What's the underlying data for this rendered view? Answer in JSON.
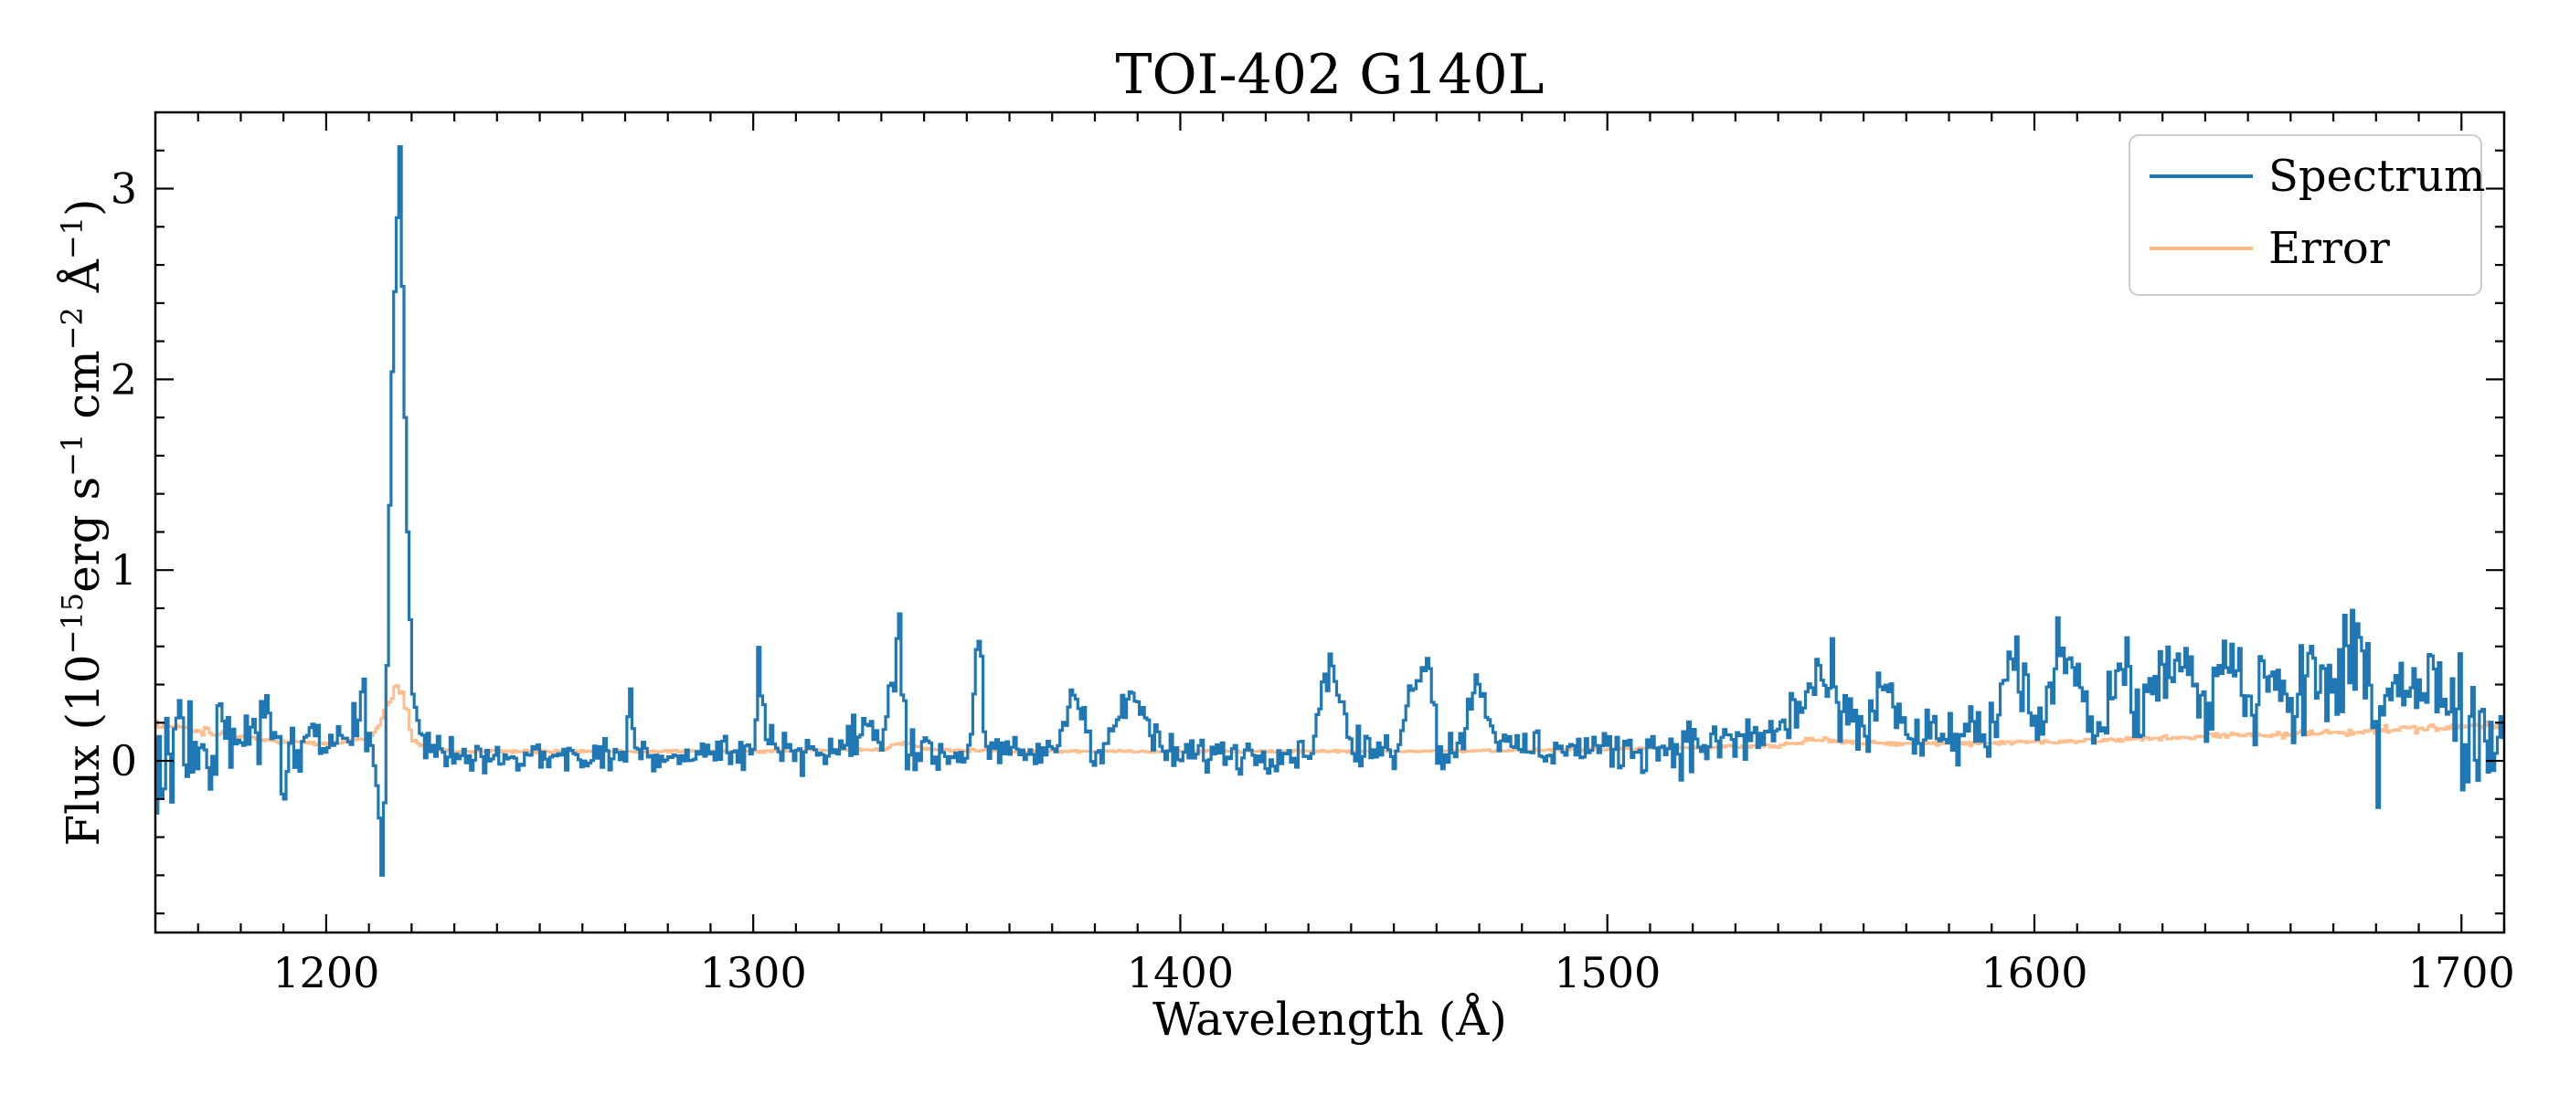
{
  "chart_data": {
    "type": "line",
    "title": "TOI-402 G140L",
    "xlabel": "Wavelength (Å)",
    "ylabel": {
      "prefix": "Flux (10",
      "exp1": "−15",
      "mid1": "erg s",
      "exp2": "−1",
      "mid2": " cm",
      "exp3": "−2",
      "mid3": " Å",
      "exp4": "−1",
      "suffix": ")"
    },
    "xlim": [
      1160,
      1710
    ],
    "ylim": [
      -0.9,
      3.4
    ],
    "x_ticks": [
      1200,
      1300,
      1400,
      1500,
      1600,
      1700
    ],
    "y_ticks": [
      0,
      1,
      2,
      3
    ],
    "legend": {
      "position": "top-right",
      "entries": [
        "Spectrum",
        "Error"
      ]
    },
    "colors": {
      "spectrum": "#1f77b4",
      "error": "#ffbb88"
    },
    "bin_width": 0.6,
    "series": [
      {
        "name": "Spectrum",
        "style": "step",
        "x": [
          1160,
          1165,
          1170,
          1175,
          1180,
          1185,
          1190,
          1195,
          1200,
          1205,
          1208,
          1210,
          1212,
          1213,
          1214,
          1215,
          1216,
          1217,
          1218,
          1219,
          1220,
          1222,
          1225,
          1230,
          1240,
          1250,
          1260,
          1270,
          1271,
          1272,
          1280,
          1290,
          1300,
          1301,
          1303,
          1310,
          1320,
          1326,
          1330,
          1334,
          1335,
          1336,
          1340,
          1350,
          1353,
          1354,
          1360,
          1370,
          1375,
          1380,
          1389,
          1395,
          1400,
          1410,
          1420,
          1430,
          1435,
          1440,
          1445,
          1450,
          1455,
          1458,
          1460,
          1465,
          1469,
          1475,
          1480,
          1490,
          1500,
          1510,
          1520,
          1530,
          1540,
          1545,
          1550,
          1555,
          1560,
          1565,
          1570,
          1580,
          1590,
          1595,
          1600,
          1607,
          1615,
          1620,
          1625,
          1630,
          1635,
          1640,
          1645,
          1650,
          1655,
          1660,
          1665,
          1670,
          1675,
          1680,
          1685,
          1690,
          1695,
          1700,
          1705,
          1710
        ],
        "y": [
          0.05,
          0.2,
          -0.1,
          0.12,
          0.05,
          0.3,
          -0.05,
          0.05,
          0.1,
          0.25,
          0.3,
          0.15,
          -0.2,
          -0.7,
          0.5,
          1.9,
          2.6,
          3.22,
          2.0,
          1.0,
          0.35,
          0.12,
          0.05,
          0.03,
          0.02,
          0.03,
          0.02,
          0.04,
          0.38,
          0.05,
          0.03,
          0.05,
          0.04,
          0.53,
          0.1,
          0.06,
          0.04,
          0.2,
          0.06,
          0.75,
          0.3,
          0.1,
          0.04,
          0.03,
          0.76,
          0.05,
          0.03,
          0.04,
          0.37,
          0.03,
          0.35,
          0.05,
          0.03,
          0.04,
          0.04,
          0.05,
          0.55,
          0.05,
          0.05,
          0.06,
          0.45,
          0.58,
          0.05,
          0.06,
          0.45,
          0.06,
          0.07,
          0.06,
          0.06,
          0.07,
          0.08,
          0.1,
          0.15,
          0.3,
          0.45,
          0.2,
          0.12,
          0.45,
          0.1,
          0.12,
          0.15,
          0.52,
          0.15,
          0.63,
          0.15,
          0.52,
          0.2,
          0.55,
          0.45,
          0.2,
          0.58,
          0.25,
          0.5,
          0.2,
          0.55,
          0.3,
          0.6,
          0.2,
          0.55,
          0.3,
          0.45,
          0.2,
          0.15,
          0.1
        ]
      },
      {
        "name": "Error",
        "style": "step",
        "x": [
          1160,
          1170,
          1180,
          1190,
          1200,
          1205,
          1210,
          1212,
          1214,
          1216,
          1217,
          1218,
          1219,
          1220,
          1222,
          1225,
          1230,
          1250,
          1270,
          1290,
          1300,
          1330,
          1335,
          1340,
          1360,
          1400,
          1450,
          1500,
          1520,
          1540,
          1550,
          1560,
          1580,
          1600,
          1620,
          1640,
          1660,
          1680,
          1700,
          1710
        ],
        "y": [
          0.19,
          0.16,
          0.13,
          0.1,
          0.09,
          0.1,
          0.12,
          0.18,
          0.28,
          0.38,
          0.4,
          0.33,
          0.22,
          0.12,
          0.08,
          0.06,
          0.05,
          0.05,
          0.05,
          0.05,
          0.05,
          0.06,
          0.1,
          0.06,
          0.05,
          0.05,
          0.05,
          0.06,
          0.07,
          0.08,
          0.12,
          0.09,
          0.09,
          0.1,
          0.11,
          0.13,
          0.14,
          0.16,
          0.18,
          0.19
        ]
      }
    ]
  }
}
